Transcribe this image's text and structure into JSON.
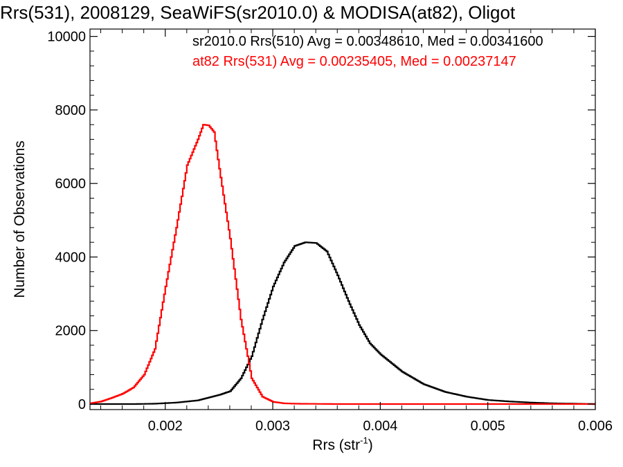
{
  "chart_data": {
    "type": "line",
    "title": "Rrs(531), 2008129, SeaWiFS(sr2010.0) & MODISA(at82), Oligot",
    "xlabel": "Rrs (str",
    "xlabel_sup": "-1",
    "xlabel_tail": ")",
    "ylabel": "Number of Observations",
    "xlim": [
      0.0013,
      0.006
    ],
    "ylim": [
      -150,
      10200
    ],
    "x_ticks": [
      0.002,
      0.003,
      0.004,
      0.005,
      0.006
    ],
    "x_tick_labels": [
      "0.002",
      "0.003",
      "0.004",
      "0.005",
      "0.006"
    ],
    "y_ticks": [
      0,
      2000,
      4000,
      6000,
      8000,
      10000
    ],
    "y_tick_labels": [
      "0",
      "2000",
      "4000",
      "6000",
      "8000",
      "10000"
    ],
    "grid": false,
    "legend_position": "top",
    "style": "step",
    "series": [
      {
        "name": "sr2010.0 Rrs(510) Avg = 0.00348610, Med = 0.00341600",
        "color": "#000000",
        "x": [
          0.0013,
          0.0015,
          0.0017,
          0.0019,
          0.0021,
          0.0023,
          0.0025,
          0.0026,
          0.0027,
          0.0028,
          0.0029,
          0.003,
          0.0031,
          0.0032,
          0.0033,
          0.0034,
          0.0035,
          0.0036,
          0.0037,
          0.0038,
          0.0039,
          0.004,
          0.0042,
          0.0044,
          0.0046,
          0.0048,
          0.005,
          0.0052,
          0.0054,
          0.0056,
          0.0058,
          0.006
        ],
        "y": [
          0,
          0,
          0,
          10,
          40,
          100,
          250,
          350,
          700,
          1300,
          2300,
          3200,
          3850,
          4300,
          4400,
          4380,
          4150,
          3500,
          2800,
          2150,
          1650,
          1350,
          880,
          540,
          330,
          200,
          110,
          70,
          40,
          20,
          10,
          0
        ]
      },
      {
        "name": "at82 Rrs(531) Avg = 0.00235405, Med = 0.00237147",
        "color": "#ff0000",
        "x": [
          0.0013,
          0.0014,
          0.0015,
          0.0016,
          0.0017,
          0.0018,
          0.0019,
          0.002,
          0.0021,
          0.0022,
          0.0023,
          0.00235,
          0.0024,
          0.00245,
          0.0025,
          0.0026,
          0.0027,
          0.0028,
          0.0029,
          0.003,
          0.0031,
          0.0032,
          0.0034,
          0.0036,
          0.004,
          0.006
        ],
        "y": [
          20,
          70,
          170,
          280,
          450,
          800,
          1500,
          3200,
          4800,
          6500,
          7200,
          7600,
          7580,
          7400,
          6400,
          4500,
          2300,
          700,
          200,
          60,
          20,
          10,
          5,
          0,
          0,
          0
        ]
      }
    ]
  }
}
